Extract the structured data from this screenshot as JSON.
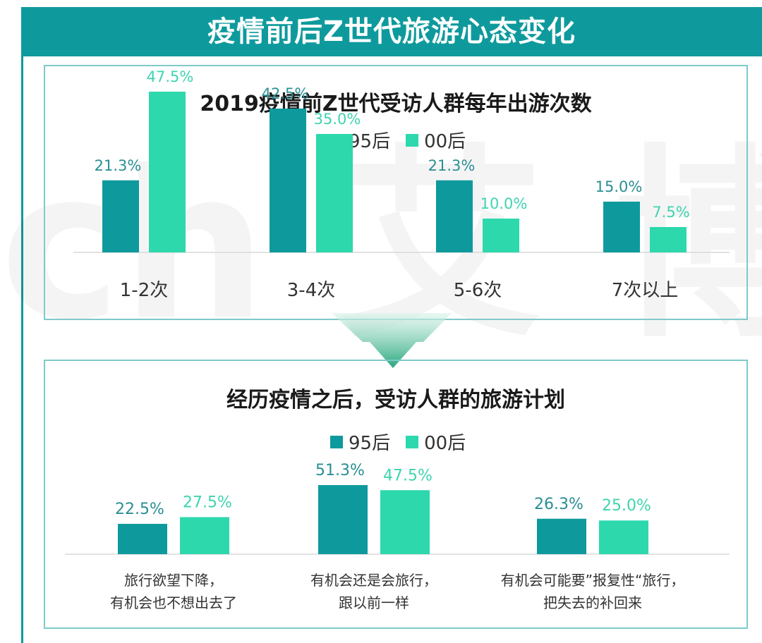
{
  "banner": {
    "title": "疫情前后Z世代旅游心态变化"
  },
  "watermark": {
    "text": "ch 艾 博"
  },
  "colors": {
    "series1": "#0e9a9d",
    "series2": "#2dd8ad",
    "label1": "#2a8f94",
    "label2": "#3fd4b0",
    "teal": "#0e9a9d"
  },
  "chart_data": [
    {
      "type": "bar",
      "title": "2019疫情前Z世代受访人群每年出游次数",
      "categories": [
        "1-2次",
        "3-4次",
        "5-6次",
        "7次以上"
      ],
      "series": [
        {
          "name": "95后",
          "values": [
            21.3,
            42.5,
            21.3,
            15.0
          ],
          "labels": [
            "21.3%",
            "42.5%",
            "21.3%",
            "15.0%"
          ]
        },
        {
          "name": "00后",
          "values": [
            47.5,
            35.0,
            10.0,
            7.5
          ],
          "labels": [
            "47.5%",
            "35.0%",
            "10.0%",
            "7.5%"
          ]
        }
      ],
      "ylim": [
        0,
        50
      ]
    },
    {
      "type": "bar",
      "title": "经历疫情之后，受访人群的旅游计划",
      "categories": [
        [
          "旅行欲望下降，",
          "有机会也不想出去了"
        ],
        [
          "有机会还是会旅行，",
          "跟以前一样"
        ],
        [
          "有机会可能要”报复性“旅行，",
          "把失去的补回来"
        ]
      ],
      "series": [
        {
          "name": "95后",
          "values": [
            22.5,
            51.3,
            26.3
          ],
          "labels": [
            "22.5%",
            "51.3%",
            "26.3%"
          ]
        },
        {
          "name": "00后",
          "values": [
            27.5,
            47.5,
            25.0
          ],
          "labels": [
            "27.5%",
            "47.5%",
            "25.0%"
          ]
        }
      ],
      "ylim": [
        0,
        55
      ]
    }
  ]
}
